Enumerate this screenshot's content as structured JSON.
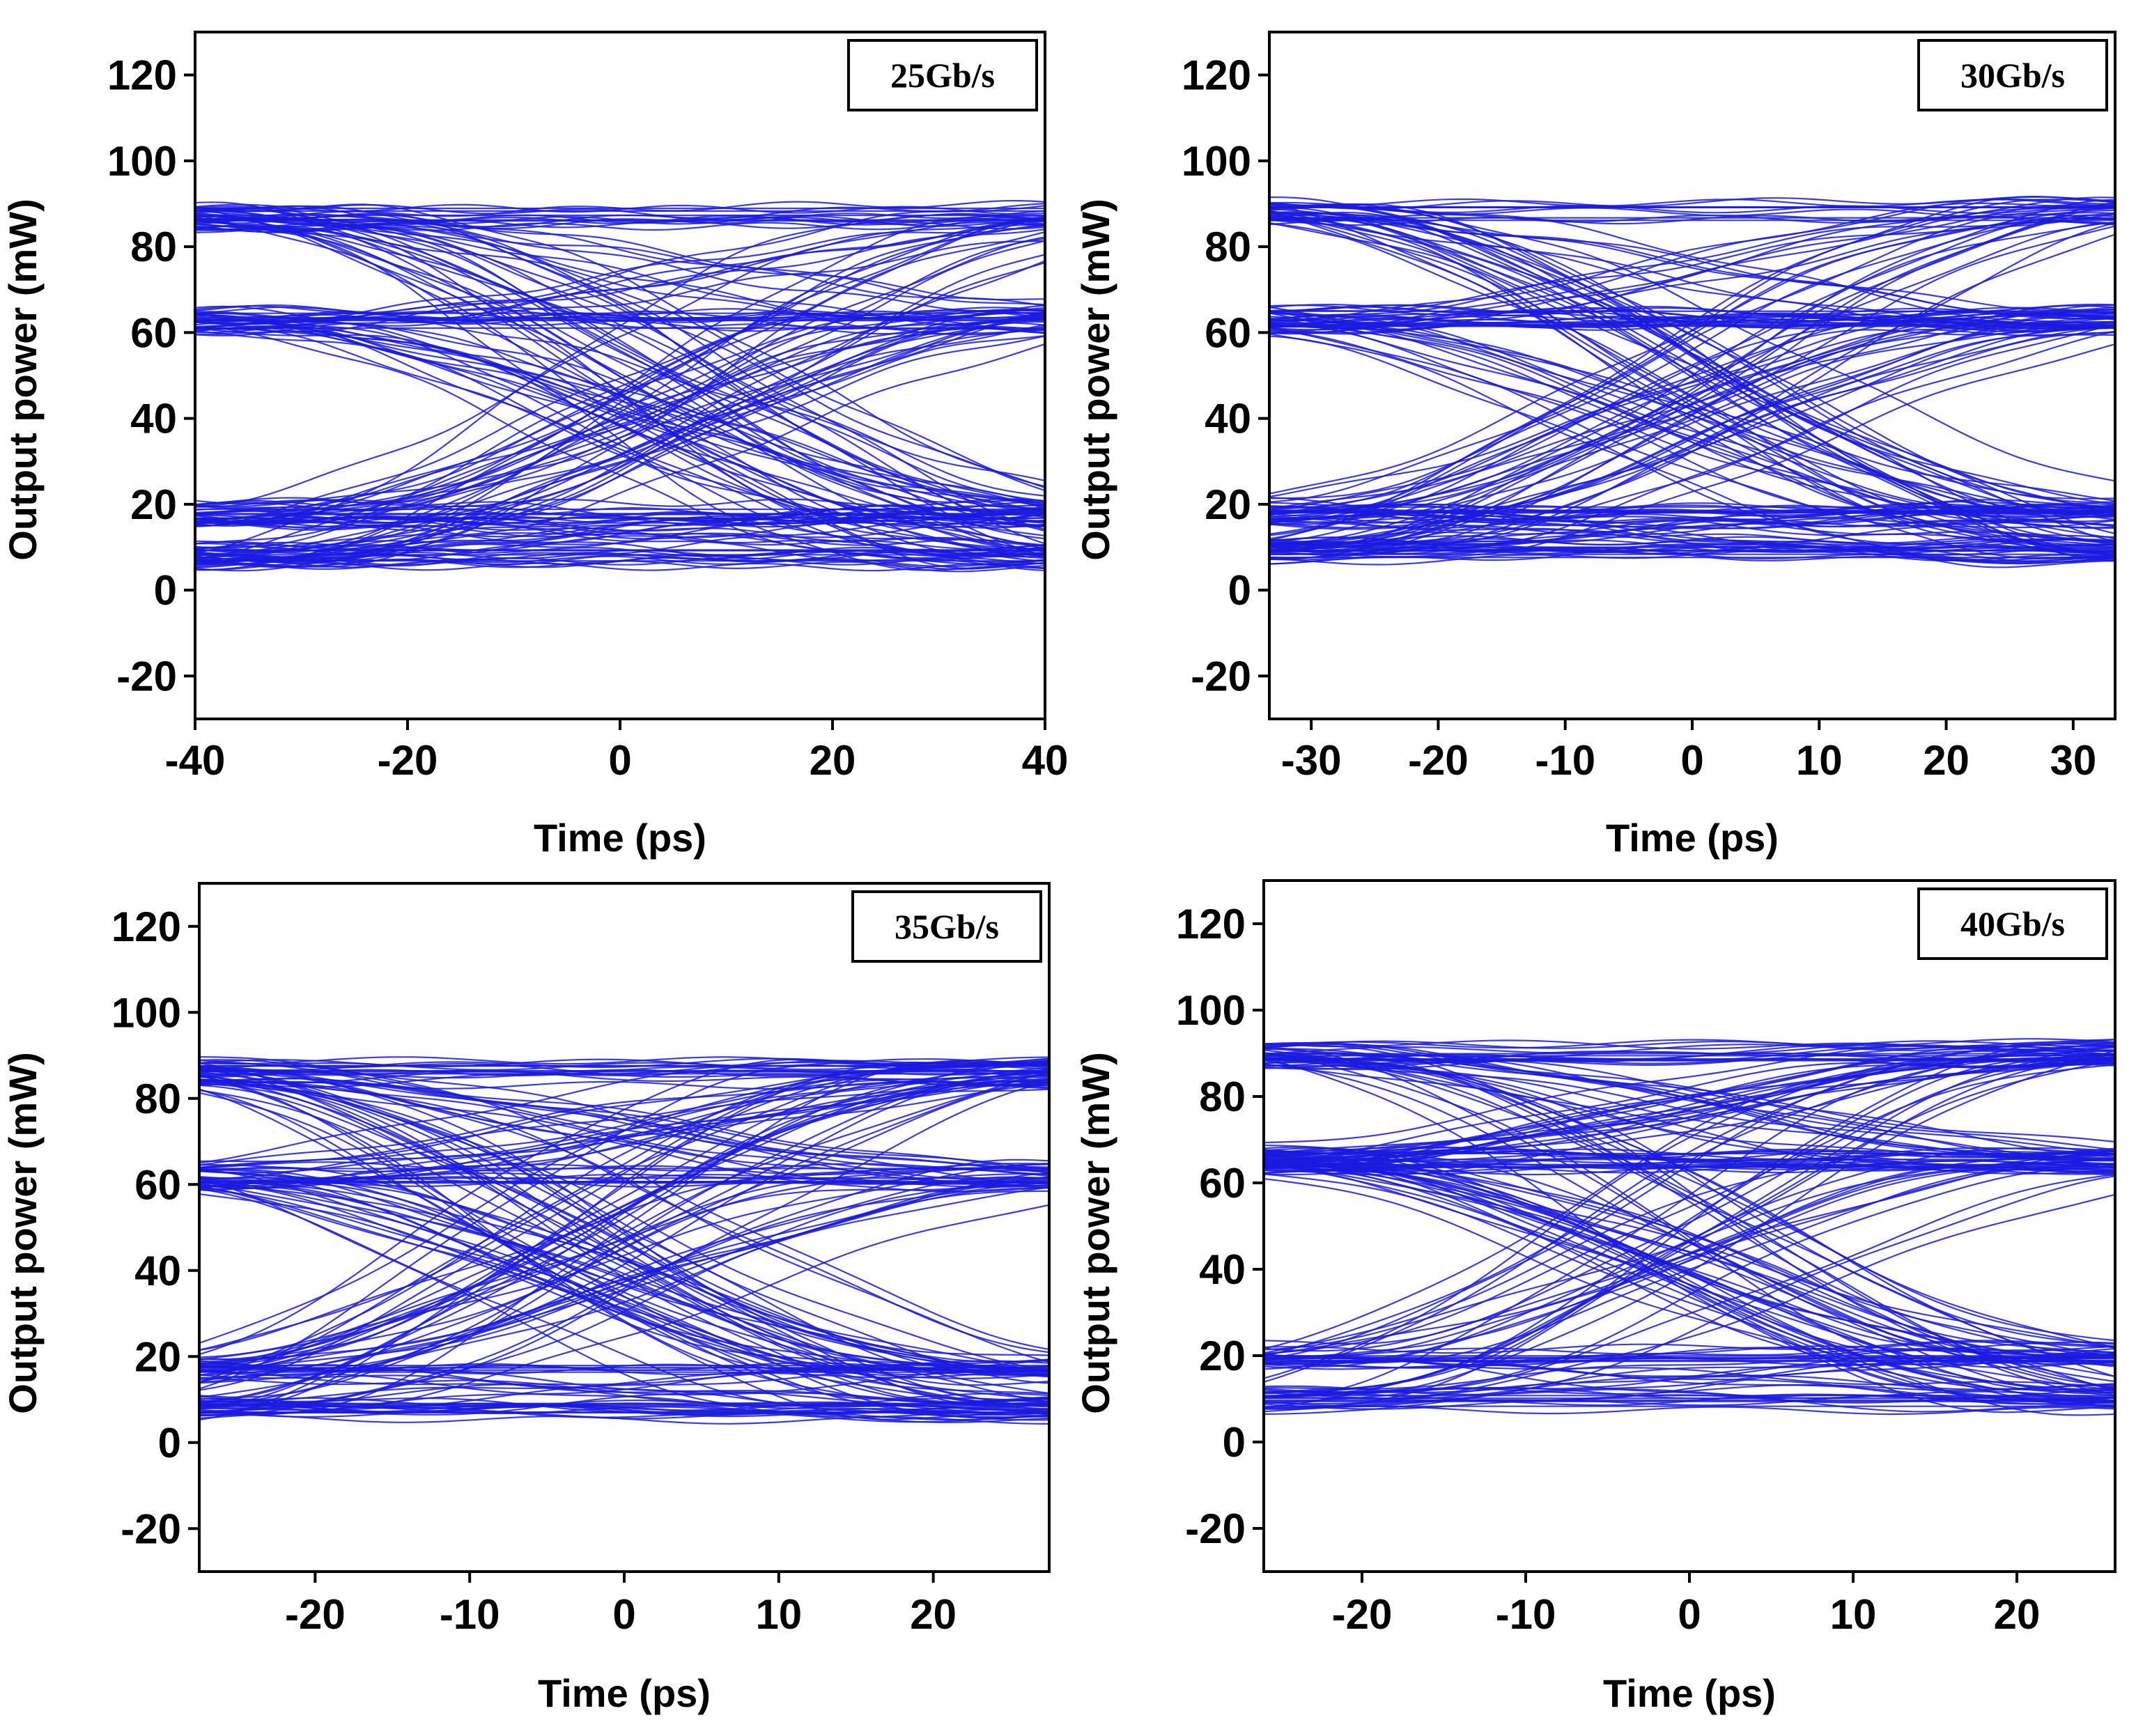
{
  "chart_data": [
    {
      "type": "line",
      "title": "25Gb/s",
      "xlabel": "Time (ps)",
      "ylabel": "Output power (mW)",
      "xlim": [
        -40,
        40
      ],
      "ylim": [
        -30,
        130
      ],
      "xticks": [
        -40,
        -20,
        0,
        20,
        40
      ],
      "yticks": [
        -20,
        0,
        20,
        40,
        60,
        80,
        100,
        120
      ],
      "levels": [
        8,
        18,
        63,
        87
      ],
      "eye_center": 5,
      "line_color": "#1a1adf"
    },
    {
      "type": "line",
      "title": "30Gb/s",
      "xlabel": "Time (ps)",
      "ylabel": "Output power (mW)",
      "xlim": [
        -33.3,
        33.3
      ],
      "ylim": [
        -30,
        130
      ],
      "xticks": [
        -30,
        -20,
        -10,
        0,
        10,
        20,
        30
      ],
      "yticks": [
        -20,
        0,
        20,
        40,
        60,
        80,
        100,
        120
      ],
      "levels": [
        9,
        18,
        63,
        88
      ],
      "eye_center": 0,
      "line_color": "#1a1adf"
    },
    {
      "type": "line",
      "title": "35Gb/s",
      "xlabel": "Time (ps)",
      "ylabel": "Output power (mW)",
      "xlim": [
        -27.5,
        27.5
      ],
      "ylim": [
        -30,
        130
      ],
      "xticks": [
        -20,
        -10,
        0,
        10,
        20
      ],
      "yticks": [
        -20,
        0,
        20,
        40,
        60,
        80,
        100,
        120
      ],
      "levels": [
        8,
        17,
        62,
        86
      ],
      "eye_center": -2,
      "line_color": "#1a1adf"
    },
    {
      "type": "line",
      "title": "40Gb/s",
      "xlabel": "Time (ps)",
      "ylabel": "Output power (mW)",
      "xlim": [
        -26,
        26
      ],
      "ylim": [
        -30,
        130
      ],
      "xticks": [
        -20,
        -10,
        0,
        10,
        20
      ],
      "yticks": [
        -20,
        0,
        20,
        40,
        60,
        80,
        100,
        120
      ],
      "levels": [
        10,
        20,
        65,
        90
      ],
      "eye_center": 0,
      "line_color": "#1a1adf"
    }
  ]
}
